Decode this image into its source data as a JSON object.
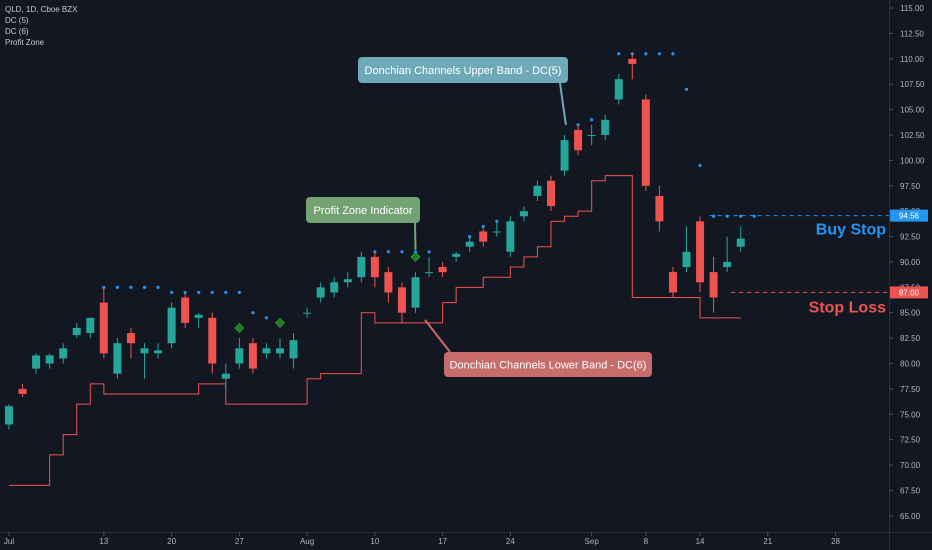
{
  "legend": {
    "symbol": "QLD, 1D, Cboe BZX",
    "items": [
      "DC (5)",
      "DC (6)",
      "Profit Zone"
    ]
  },
  "colors": {
    "background": "#131722",
    "up": "#26a69a",
    "down": "#ef5350",
    "upper_band": "#2196f3",
    "lower_band": "#ef5350",
    "profit_marker": "#1f7a1f",
    "axis_text": "#b2b5be"
  },
  "chart_data": {
    "type": "candlestick",
    "y_ticks": [
      "65.00",
      "67.50",
      "70.00",
      "72.50",
      "75.00",
      "77.50",
      "80.00",
      "82.50",
      "85.00",
      "87.50",
      "90.00",
      "92.50",
      "95.00",
      "97.50",
      "100.00",
      "102.50",
      "105.00",
      "107.50",
      "110.00",
      "112.50",
      "115.00"
    ],
    "y_range": [
      64.0,
      115.5
    ],
    "x_ticks": [
      {
        "label": "Jul",
        "i": 0
      },
      {
        "label": "13",
        "i": 7
      },
      {
        "label": "20",
        "i": 12
      },
      {
        "label": "27",
        "i": 17
      },
      {
        "label": "Aug",
        "i": 22
      },
      {
        "label": "10",
        "i": 27
      },
      {
        "label": "17",
        "i": 32
      },
      {
        "label": "24",
        "i": 37
      },
      {
        "label": "Sep",
        "i": 43
      },
      {
        "label": "8",
        "i": 47
      },
      {
        "label": "14",
        "i": 51
      },
      {
        "label": "21",
        "i": 56
      },
      {
        "label": "28",
        "i": 61
      }
    ],
    "candles": [
      {
        "o": 74.0,
        "h": 76.0,
        "l": 73.5,
        "c": 75.8
      },
      {
        "o": 77.5,
        "h": 78.0,
        "l": 76.7,
        "c": 77.0
      },
      {
        "o": 79.5,
        "h": 81.0,
        "l": 79.0,
        "c": 80.8
      },
      {
        "o": 80.0,
        "h": 81.0,
        "l": 79.5,
        "c": 80.8
      },
      {
        "o": 80.5,
        "h": 82.0,
        "l": 80.0,
        "c": 81.5
      },
      {
        "o": 82.8,
        "h": 84.0,
        "l": 82.5,
        "c": 83.5
      },
      {
        "o": 83.0,
        "h": 84.5,
        "l": 82.5,
        "c": 84.5
      },
      {
        "o": 86.0,
        "h": 87.5,
        "l": 80.5,
        "c": 81.0
      },
      {
        "o": 79.0,
        "h": 82.5,
        "l": 78.5,
        "c": 82.0
      },
      {
        "o": 83.0,
        "h": 83.5,
        "l": 80.5,
        "c": 82.0
      },
      {
        "o": 81.0,
        "h": 82.0,
        "l": 78.5,
        "c": 81.5
      },
      {
        "o": 81.0,
        "h": 82.0,
        "l": 80.5,
        "c": 81.3
      },
      {
        "o": 82.0,
        "h": 86.0,
        "l": 81.5,
        "c": 85.5
      },
      {
        "o": 86.5,
        "h": 87.0,
        "l": 83.5,
        "c": 84.0
      },
      {
        "o": 84.5,
        "h": 85.0,
        "l": 83.5,
        "c": 84.8
      },
      {
        "o": 84.5,
        "h": 85.0,
        "l": 79.0,
        "c": 80.0
      },
      {
        "o": 78.5,
        "h": 80.0,
        "l": 77.5,
        "c": 79.0
      },
      {
        "o": 80.0,
        "h": 82.5,
        "l": 79.5,
        "c": 81.5
      },
      {
        "o": 82.0,
        "h": 82.5,
        "l": 79.0,
        "c": 79.5
      },
      {
        "o": 81.0,
        "h": 82.0,
        "l": 80.5,
        "c": 81.5
      },
      {
        "o": 81.0,
        "h": 82.5,
        "l": 80.5,
        "c": 81.5
      },
      {
        "o": 80.5,
        "h": 83.0,
        "l": 79.5,
        "c": 82.3
      },
      {
        "o": 85.0,
        "h": 85.5,
        "l": 84.5,
        "c": 85.0
      },
      {
        "o": 86.5,
        "h": 88.0,
        "l": 86.0,
        "c": 87.5
      },
      {
        "o": 87.0,
        "h": 88.5,
        "l": 86.5,
        "c": 88.0
      },
      {
        "o": 88.0,
        "h": 89.0,
        "l": 87.5,
        "c": 88.3
      },
      {
        "o": 88.5,
        "h": 91.0,
        "l": 88.0,
        "c": 90.5
      },
      {
        "o": 90.5,
        "h": 91.0,
        "l": 87.5,
        "c": 88.5
      },
      {
        "o": 89.0,
        "h": 89.5,
        "l": 86.0,
        "c": 87.0
      },
      {
        "o": 87.5,
        "h": 88.0,
        "l": 84.0,
        "c": 85.0
      },
      {
        "o": 85.5,
        "h": 89.0,
        "l": 85.0,
        "c": 88.5
      },
      {
        "o": 89.0,
        "h": 90.5,
        "l": 88.5,
        "c": 89.0
      },
      {
        "o": 89.5,
        "h": 90.0,
        "l": 88.5,
        "c": 89.0
      },
      {
        "o": 90.5,
        "h": 91.0,
        "l": 90.0,
        "c": 90.8
      },
      {
        "o": 91.5,
        "h": 92.5,
        "l": 91.0,
        "c": 92.0
      },
      {
        "o": 93.0,
        "h": 93.5,
        "l": 91.5,
        "c": 92.0
      },
      {
        "o": 93.0,
        "h": 94.0,
        "l": 92.5,
        "c": 93.0
      },
      {
        "o": 91.0,
        "h": 94.5,
        "l": 90.5,
        "c": 94.0
      },
      {
        "o": 94.5,
        "h": 95.5,
        "l": 94.0,
        "c": 95.0
      },
      {
        "o": 96.5,
        "h": 98.0,
        "l": 96.0,
        "c": 97.5
      },
      {
        "o": 98.0,
        "h": 98.5,
        "l": 95.0,
        "c": 95.5
      },
      {
        "o": 99.0,
        "h": 102.5,
        "l": 98.5,
        "c": 102.0
      },
      {
        "o": 103.0,
        "h": 103.5,
        "l": 100.5,
        "c": 101.0
      },
      {
        "o": 102.5,
        "h": 103.5,
        "l": 101.5,
        "c": 102.5
      },
      {
        "o": 102.5,
        "h": 104.5,
        "l": 102.0,
        "c": 104.0
      },
      {
        "o": 106.0,
        "h": 108.5,
        "l": 105.5,
        "c": 108.0
      },
      {
        "o": 110.0,
        "h": 110.5,
        "l": 108.0,
        "c": 109.5
      },
      {
        "o": 106.0,
        "h": 106.5,
        "l": 97.0,
        "c": 97.5
      },
      {
        "o": 96.5,
        "h": 97.5,
        "l": 93.0,
        "c": 94.0
      },
      {
        "o": 89.0,
        "h": 89.5,
        "l": 86.5,
        "c": 87.0
      },
      {
        "o": 89.5,
        "h": 93.5,
        "l": 89.0,
        "c": 91.0
      },
      {
        "o": 94.0,
        "h": 94.5,
        "l": 87.0,
        "c": 88.0
      },
      {
        "o": 89.0,
        "h": 90.5,
        "l": 85.0,
        "c": 86.5
      },
      {
        "o": 89.5,
        "h": 92.5,
        "l": 89.0,
        "c": 90.0
      },
      {
        "o": 91.5,
        "h": 93.5,
        "l": 91.0,
        "c": 92.3
      }
    ],
    "upper_band": {
      "name": "DC(5)",
      "points": [
        {
          "i": 7,
          "v": 87.5
        },
        {
          "i": 8,
          "v": 87.5
        },
        {
          "i": 9,
          "v": 87.5
        },
        {
          "i": 10,
          "v": 87.5
        },
        {
          "i": 11,
          "v": 87.5
        },
        {
          "i": 12,
          "v": 87.0
        },
        {
          "i": 13,
          "v": 87.0
        },
        {
          "i": 14,
          "v": 87.0
        },
        {
          "i": 15,
          "v": 87.0
        },
        {
          "i": 16,
          "v": 87.0
        },
        {
          "i": 17,
          "v": 87.0
        },
        {
          "i": 18,
          "v": 85.0
        },
        {
          "i": 19,
          "v": 84.5
        },
        {
          "i": 20,
          "v": 84.0
        },
        {
          "i": 27,
          "v": 91.0
        },
        {
          "i": 28,
          "v": 91.0
        },
        {
          "i": 29,
          "v": 91.0
        },
        {
          "i": 30,
          "v": 91.0
        },
        {
          "i": 31,
          "v": 91.0
        },
        {
          "i": 34,
          "v": 92.5
        },
        {
          "i": 35,
          "v": 93.5
        },
        {
          "i": 36,
          "v": 94.0
        },
        {
          "i": 42,
          "v": 103.5
        },
        {
          "i": 43,
          "v": 104.0
        },
        {
          "i": 45,
          "v": 110.5
        },
        {
          "i": 46,
          "v": 110.5
        },
        {
          "i": 47,
          "v": 110.5
        },
        {
          "i": 48,
          "v": 110.5
        },
        {
          "i": 49,
          "v": 110.5
        },
        {
          "i": 50,
          "v": 107.0
        },
        {
          "i": 51,
          "v": 99.5
        },
        {
          "i": 52,
          "v": 94.5
        },
        {
          "i": 53,
          "v": 94.5
        },
        {
          "i": 54,
          "v": 94.5
        },
        {
          "i": 55,
          "v": 94.5
        }
      ]
    },
    "lower_band": {
      "name": "DC(6)",
      "steps": [
        {
          "from": 0,
          "to": 3,
          "v": 68.0
        },
        {
          "from": 3,
          "to": 4,
          "v": 71.0
        },
        {
          "from": 4,
          "to": 5,
          "v": 73.0
        },
        {
          "from": 5,
          "to": 6,
          "v": 76.0
        },
        {
          "from": 6,
          "to": 7,
          "v": 78.0
        },
        {
          "from": 7,
          "to": 14,
          "v": 77.0
        },
        {
          "from": 14,
          "to": 16,
          "v": 78.0
        },
        {
          "from": 16,
          "to": 17,
          "v": 76.0
        },
        {
          "from": 17,
          "to": 22,
          "v": 76.0
        },
        {
          "from": 22,
          "to": 23,
          "v": 78.5
        },
        {
          "from": 23,
          "to": 26,
          "v": 79.0
        },
        {
          "from": 26,
          "to": 27,
          "v": 85.0
        },
        {
          "from": 27,
          "to": 32,
          "v": 84.0
        },
        {
          "from": 32,
          "to": 33,
          "v": 86.0
        },
        {
          "from": 33,
          "to": 35,
          "v": 87.5
        },
        {
          "from": 35,
          "to": 37,
          "v": 88.5
        },
        {
          "from": 37,
          "to": 38,
          "v": 89.5
        },
        {
          "from": 38,
          "to": 39,
          "v": 90.5
        },
        {
          "from": 39,
          "to": 40,
          "v": 91.5
        },
        {
          "from": 40,
          "to": 41,
          "v": 94.0
        },
        {
          "from": 41,
          "to": 42,
          "v": 94.5
        },
        {
          "from": 42,
          "to": 43,
          "v": 95.0
        },
        {
          "from": 43,
          "to": 44,
          "v": 98.0
        },
        {
          "from": 44,
          "to": 46,
          "v": 98.5
        },
        {
          "from": 46,
          "to": 47,
          "v": 86.5
        },
        {
          "from": 47,
          "to": 48,
          "v": 86.5
        },
        {
          "from": 48,
          "to": 50,
          "v": 86.5
        },
        {
          "from": 50,
          "to": 51,
          "v": 86.5
        },
        {
          "from": 51,
          "to": 54,
          "v": 84.5
        }
      ]
    },
    "profit_markers": [
      {
        "i": 17,
        "v": 83.5
      },
      {
        "i": 20,
        "v": 84.0
      },
      {
        "i": 30,
        "v": 90.5
      }
    ],
    "buy_stop": {
      "value": 94.56,
      "label": "94.56",
      "from_i": 52
    },
    "stop_loss": {
      "value": 87.0,
      "label": "87.00",
      "from_i": 53
    },
    "level_labels": {
      "buy": "Buy Stop",
      "stop": "Stop Loss"
    },
    "annotations": [
      {
        "text": "Donchian Channels Upper Band - DC(5)",
        "color": "#6ea9b8",
        "tip_i": 41.1,
        "tip_v": 103.5
      },
      {
        "text": "Profit Zone Indicator",
        "color": "#73a373",
        "tip_i": 30,
        "tip_v": 91.2
      },
      {
        "text": "Donchian Channels Lower Band - DC(6)",
        "color": "#c76b6b",
        "tip_i": 30.7,
        "tip_v": 84.3
      }
    ]
  }
}
